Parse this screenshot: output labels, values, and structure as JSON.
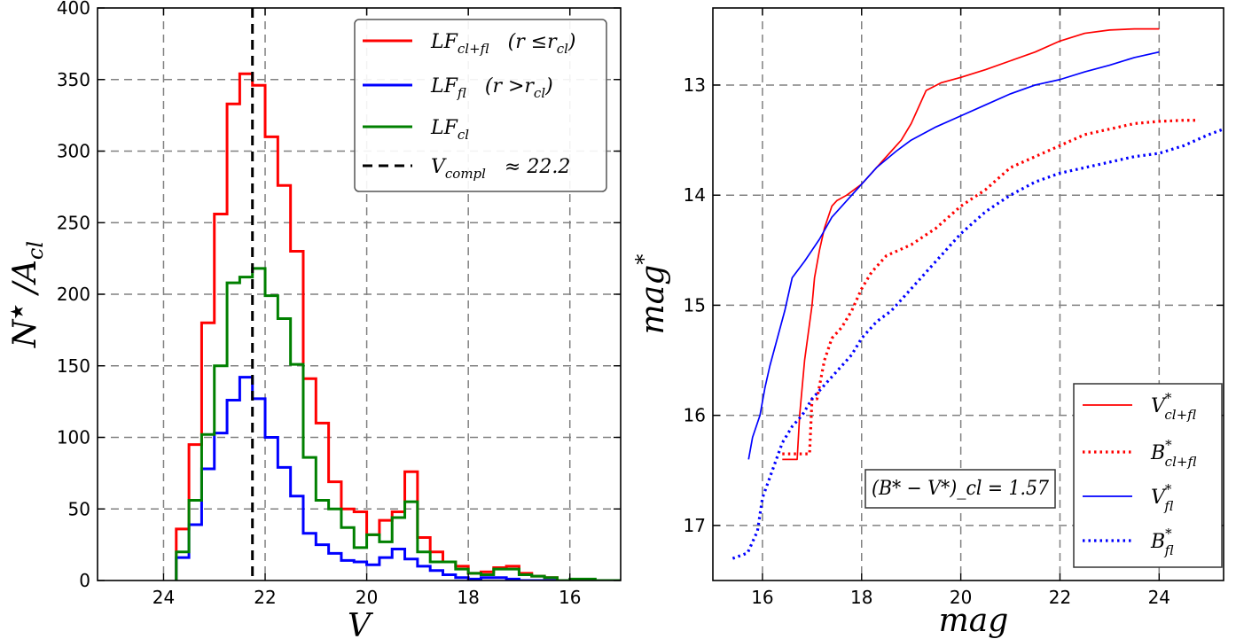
{
  "chart_data": [
    {
      "type": "line",
      "subtype": "step-histogram",
      "xlabel": "V",
      "ylabel": "N*/A_cl",
      "xlim": [
        25.3,
        15.0
      ],
      "ylim": [
        0,
        400
      ],
      "x_ticks": [
        24,
        22,
        20,
        18,
        16
      ],
      "y_ticks": [
        0,
        50,
        100,
        150,
        200,
        250,
        300,
        350,
        400
      ],
      "grid": true,
      "legend_position": "upper right",
      "bin_edges": [
        23.75,
        23.5,
        23.25,
        23.0,
        22.75,
        22.5,
        22.25,
        22.0,
        21.75,
        21.5,
        21.25,
        21.0,
        20.75,
        20.5,
        20.25,
        20.0,
        19.75,
        19.5,
        19.25,
        19.0,
        18.75,
        18.5,
        18.25,
        18.0,
        17.75,
        17.5,
        17.25,
        17.0,
        16.75,
        16.5,
        16.25,
        16.0,
        15.75,
        15.5,
        15.25,
        15.0
      ],
      "series": [
        {
          "name": "LF_cl+fl (r ≤ r_cl)",
          "color": "#ff0000",
          "values": [
            36,
            95,
            180,
            256,
            333,
            354,
            346,
            310,
            276,
            230,
            141,
            110,
            69,
            50,
            48,
            32,
            42,
            48,
            76,
            30,
            20,
            13,
            10,
            5,
            6,
            9,
            10,
            5,
            3,
            2,
            0,
            0,
            0,
            0,
            0
          ]
        },
        {
          "name": "LF_fl (r > r_cl)",
          "color": "#0000ff",
          "values": [
            16,
            39,
            78,
            103,
            126,
            142,
            127,
            100,
            79,
            59,
            33,
            25,
            19,
            14,
            13,
            11,
            16,
            22,
            15,
            10,
            7,
            4,
            2,
            1,
            2,
            2,
            1,
            0,
            0,
            0,
            0,
            0,
            0,
            0,
            0
          ]
        },
        {
          "name": "LF_cl",
          "color": "#008000",
          "values": [
            20,
            56,
            102,
            150,
            208,
            212,
            218,
            199,
            183,
            151,
            86,
            56,
            50,
            37,
            23,
            32,
            27,
            44,
            55,
            20,
            13,
            13,
            8,
            5,
            4,
            8,
            8,
            4,
            3,
            2,
            0,
            1,
            1,
            0,
            0
          ]
        }
      ],
      "vline": {
        "x": 22.25,
        "label": "V_compl ≈ 22.2",
        "color": "#000000"
      },
      "legend": [
        {
          "key": "lf_clfl",
          "main": "LF",
          "sub": "cl+fl",
          "extra": "(r ≤r",
          "extra_sub": "cl",
          "extra_end": ")"
        },
        {
          "key": "lf_fl",
          "main": "LF",
          "sub": "fl",
          "extra": "(r >r",
          "extra_sub": "cl",
          "extra_end": ")"
        },
        {
          "key": "lf_cl",
          "main": "LF",
          "sub": "cl"
        },
        {
          "key": "vcompl",
          "main": "V",
          "sub": "compl",
          "extra": "≈ 22.2"
        }
      ]
    },
    {
      "type": "line",
      "xlabel": "mag",
      "ylabel": "mag*",
      "xlim": [
        15.0,
        25.3
      ],
      "ylim": [
        17.5,
        12.3
      ],
      "x_ticks": [
        16,
        18,
        20,
        22,
        24
      ],
      "y_ticks": [
        13,
        14,
        15,
        16,
        17
      ],
      "grid": true,
      "legend_position": "lower right",
      "annotation": "(B* − V*)_cl = 1.57",
      "series": [
        {
          "name": "V*_cl+fl",
          "color": "#ff0000",
          "style": "solid",
          "x": [
            16.4,
            16.7,
            16.75,
            16.85,
            17.0,
            17.05,
            17.15,
            17.25,
            17.4,
            17.5,
            17.7,
            18.0,
            18.3,
            18.6,
            18.8,
            19.0,
            19.3,
            19.6,
            20.0,
            20.5,
            21.0,
            21.5,
            22.0,
            22.5,
            23.0,
            23.5,
            24.0
          ],
          "y": [
            16.4,
            16.4,
            16.0,
            15.5,
            15.0,
            14.75,
            14.5,
            14.3,
            14.1,
            14.05,
            14.0,
            13.9,
            13.75,
            13.6,
            13.5,
            13.35,
            13.05,
            12.98,
            12.93,
            12.86,
            12.78,
            12.7,
            12.6,
            12.53,
            12.5,
            12.49,
            12.49
          ]
        },
        {
          "name": "B*_cl+fl",
          "color": "#ff0000",
          "style": "dotted",
          "x": [
            16.4,
            16.95,
            17.0,
            17.1,
            17.25,
            17.4,
            17.6,
            17.8,
            18.0,
            18.2,
            18.5,
            19.0,
            19.5,
            20.0,
            20.5,
            21.0,
            21.5,
            22.0,
            22.5,
            23.0,
            23.5,
            24.0,
            24.5,
            24.8
          ],
          "y": [
            16.35,
            16.35,
            15.85,
            15.85,
            15.5,
            15.3,
            15.2,
            15.05,
            14.85,
            14.7,
            14.55,
            14.45,
            14.3,
            14.1,
            13.95,
            13.75,
            13.65,
            13.55,
            13.45,
            13.4,
            13.35,
            13.33,
            13.32,
            13.32
          ]
        },
        {
          "name": "V*_fl",
          "color": "#0000ff",
          "style": "solid",
          "x": [
            15.72,
            15.8,
            15.95,
            16.05,
            16.15,
            16.3,
            16.45,
            16.6,
            16.85,
            17.0,
            17.15,
            17.4,
            17.7,
            18.0,
            18.3,
            18.7,
            19.0,
            19.5,
            20.0,
            20.5,
            21.0,
            21.5,
            22.0,
            22.5,
            23.0,
            23.5,
            24.0
          ],
          "y": [
            16.4,
            16.2,
            16.0,
            15.75,
            15.55,
            15.3,
            15.05,
            14.75,
            14.6,
            14.5,
            14.4,
            14.2,
            14.05,
            13.9,
            13.75,
            13.6,
            13.5,
            13.38,
            13.28,
            13.18,
            13.08,
            13.0,
            12.95,
            12.88,
            12.82,
            12.75,
            12.7
          ]
        },
        {
          "name": "B*_fl",
          "color": "#0000ff",
          "style": "dotted",
          "x": [
            15.4,
            15.7,
            15.9,
            16.0,
            16.2,
            16.4,
            16.6,
            16.8,
            17.0,
            17.2,
            17.5,
            17.8,
            18.0,
            18.3,
            18.6,
            19.0,
            19.5,
            20.0,
            20.5,
            21.0,
            21.5,
            22.0,
            22.5,
            23.0,
            23.5,
            24.0,
            24.5,
            25.0,
            25.3
          ],
          "y": [
            17.3,
            17.25,
            17.05,
            16.75,
            16.5,
            16.25,
            16.1,
            16.0,
            15.85,
            15.75,
            15.6,
            15.45,
            15.3,
            15.15,
            15.05,
            14.85,
            14.6,
            14.35,
            14.15,
            14.0,
            13.88,
            13.8,
            13.75,
            13.7,
            13.65,
            13.62,
            13.55,
            13.45,
            13.4
          ]
        }
      ],
      "legend": [
        {
          "key": "v_clfl",
          "main": "V",
          "sup": "*",
          "sub": "cl+fl"
        },
        {
          "key": "b_clfl",
          "main": "B",
          "sup": "*",
          "sub": "cl+fl"
        },
        {
          "key": "v_fl",
          "main": "V",
          "sup": "*",
          "sub": "fl"
        },
        {
          "key": "b_fl",
          "main": "B",
          "sup": "*",
          "sub": "fl"
        }
      ]
    }
  ]
}
